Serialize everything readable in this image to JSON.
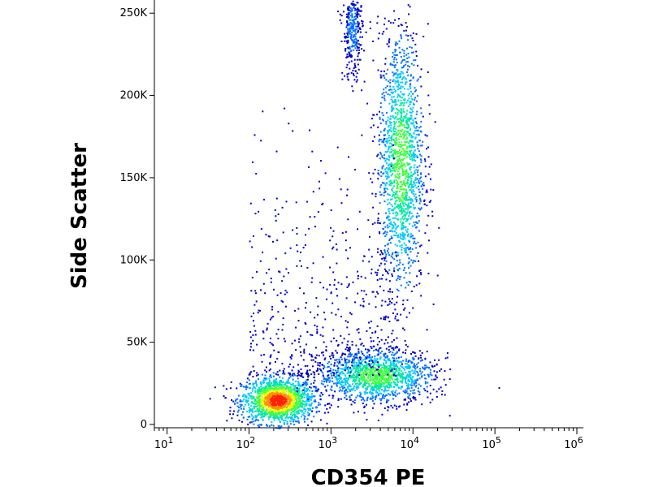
{
  "chart_data": {
    "type": "scatter",
    "style": "density dot plot (flow cytometry)",
    "xlabel": "CD354 PE",
    "ylabel": "Side Scatter",
    "x_scale": "log",
    "xlim": [
      7,
      1200000
    ],
    "ylim": [
      -2000,
      258000
    ],
    "x_ticks": [
      {
        "value": 10,
        "base": "10",
        "exp": "1"
      },
      {
        "value": 100,
        "base": "10",
        "exp": "2"
      },
      {
        "value": 1000,
        "base": "10",
        "exp": "3"
      },
      {
        "value": 10000,
        "base": "10",
        "exp": "4"
      },
      {
        "value": 100000,
        "base": "10",
        "exp": "5"
      },
      {
        "value": 1000000,
        "base": "10",
        "exp": "6"
      }
    ],
    "y_ticks": [
      {
        "value": 0,
        "label": "0"
      },
      {
        "value": 50000,
        "label": "50K"
      },
      {
        "value": 100000,
        "label": "100K"
      },
      {
        "value": 150000,
        "label": "150K"
      },
      {
        "value": 200000,
        "label": "200K"
      },
      {
        "value": 250000,
        "label": "250K"
      }
    ],
    "populations": [
      {
        "center_x": 220,
        "center_y": 15000,
        "spread_log_x": 0.22,
        "spread_y": 7000,
        "peak_density": "high"
      },
      {
        "center_x": 7000,
        "center_y": 160000,
        "spread_log_x": 0.14,
        "spread_y": 40000,
        "peak_density": "medium"
      },
      {
        "center_x": 3500,
        "center_y": 30000,
        "spread_log_x": 0.35,
        "spread_y": 8000,
        "peak_density": "medium"
      },
      {
        "center_x": 1800,
        "center_y": 240000,
        "spread_log_x": 0.06,
        "spread_y": 15000,
        "peak_density": "low"
      }
    ],
    "grid": false,
    "legend": "none",
    "density_colors": [
      "#0000c8",
      "#0070ff",
      "#00c8ff",
      "#00e8a0",
      "#40ff40",
      "#e8ff00",
      "#ff9000",
      "#ff2000"
    ]
  }
}
